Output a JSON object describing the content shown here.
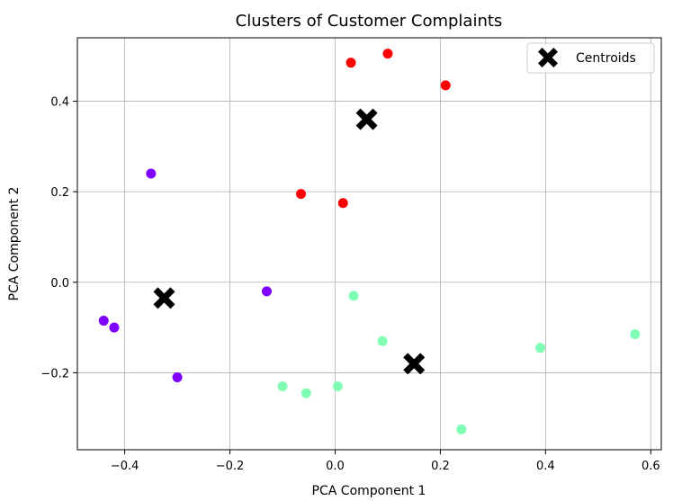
{
  "chart_data": {
    "type": "scatter",
    "title": "Clusters of Customer Complaints",
    "xlabel": "PCA Component 1",
    "ylabel": "PCA Component 2",
    "xlim": [
      -0.49,
      0.62
    ],
    "ylim": [
      -0.37,
      0.54
    ],
    "xticks": [
      -0.4,
      -0.2,
      0.0,
      0.2,
      0.4,
      0.6
    ],
    "xtick_labels": [
      "−0.4",
      "−0.2",
      "0.0",
      "0.2",
      "0.4",
      "0.6"
    ],
    "yticks": [
      -0.2,
      0.0,
      0.2,
      0.4
    ],
    "ytick_labels": [
      "−0.2",
      "0.0",
      "0.2",
      "0.4"
    ],
    "grid": true,
    "legend_position": "top-right",
    "series": [
      {
        "color": "#7f00ff",
        "marker": "circle",
        "points": [
          {
            "x": -0.35,
            "y": 0.24
          },
          {
            "x": -0.13,
            "y": -0.02
          },
          {
            "x": -0.44,
            "y": -0.085
          },
          {
            "x": -0.42,
            "y": -0.1
          },
          {
            "x": -0.3,
            "y": -0.21
          }
        ]
      },
      {
        "color": "#ff0000",
        "marker": "circle",
        "points": [
          {
            "x": 0.03,
            "y": 0.485
          },
          {
            "x": 0.1,
            "y": 0.505
          },
          {
            "x": 0.21,
            "y": 0.435
          },
          {
            "x": -0.065,
            "y": 0.195
          },
          {
            "x": 0.015,
            "y": 0.175
          }
        ]
      },
      {
        "color": "#80ffb4",
        "marker": "circle",
        "points": [
          {
            "x": 0.035,
            "y": -0.03
          },
          {
            "x": 0.09,
            "y": -0.13
          },
          {
            "x": 0.39,
            "y": -0.145
          },
          {
            "x": 0.57,
            "y": -0.115
          },
          {
            "x": -0.1,
            "y": -0.23
          },
          {
            "x": -0.055,
            "y": -0.245
          },
          {
            "x": 0.005,
            "y": -0.23
          },
          {
            "x": 0.24,
            "y": -0.325
          }
        ]
      },
      {
        "name": "Centroids",
        "color": "#000000",
        "marker": "X",
        "points": [
          {
            "x": 0.06,
            "y": 0.36
          },
          {
            "x": -0.325,
            "y": -0.035
          },
          {
            "x": 0.15,
            "y": -0.18
          }
        ]
      }
    ]
  }
}
